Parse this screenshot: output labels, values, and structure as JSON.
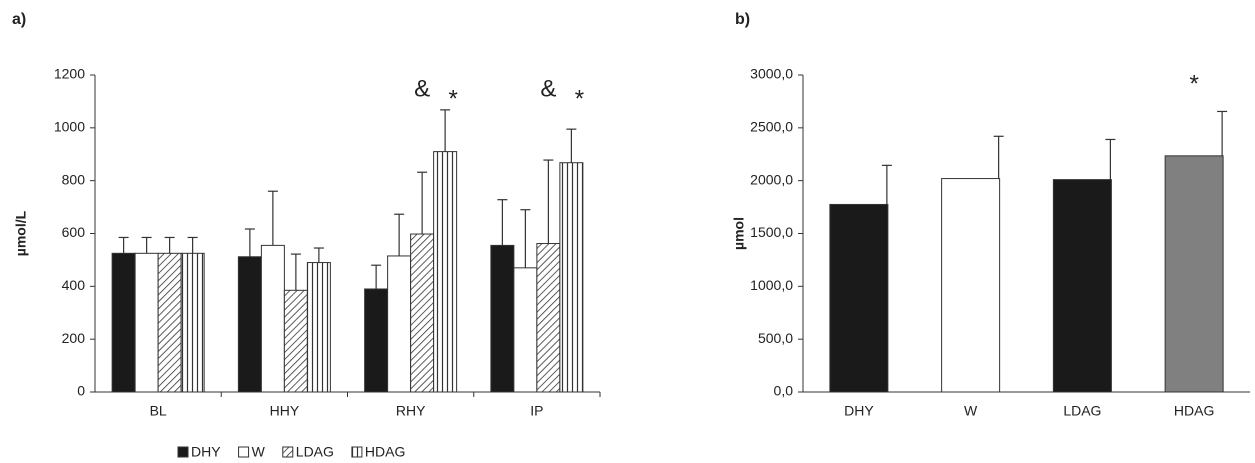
{
  "chart_data": [
    {
      "type": "bar",
      "panel_label": "a)",
      "ylabel": "µmol/L",
      "categories": [
        "BL",
        "HHY",
        "RHY",
        "IP"
      ],
      "series": [
        {
          "name": "DHY",
          "color": "#1a1a1a",
          "pattern": "solid",
          "values": [
            525,
            512,
            390,
            555
          ],
          "errors": [
            60,
            105,
            90,
            173
          ]
        },
        {
          "name": "W",
          "color": "#ffffff",
          "pattern": "solid",
          "values": [
            525,
            555,
            515,
            470
          ],
          "errors": [
            60,
            205,
            158,
            220
          ]
        },
        {
          "name": "LDAG",
          "color": "#333333",
          "pattern": "diagonal",
          "values": [
            525,
            385,
            598,
            562
          ],
          "errors": [
            60,
            137,
            234,
            316
          ]
        },
        {
          "name": "HDAG",
          "color": "#333333",
          "pattern": "vertical",
          "values": [
            525,
            490,
            910,
            868
          ],
          "errors": [
            60,
            55,
            158,
            127
          ]
        }
      ],
      "annotations": [
        {
          "text": "&",
          "category": "RHY",
          "series": "LDAG"
        },
        {
          "text": "*",
          "category": "RHY",
          "series": "HDAG"
        },
        {
          "text": "&",
          "category": "IP",
          "series": "LDAG"
        },
        {
          "text": "*",
          "category": "IP",
          "series": "HDAG"
        }
      ],
      "ylim": [
        0,
        1200
      ],
      "yticks": [
        0,
        200,
        400,
        600,
        800,
        1000,
        1200
      ],
      "grid": false,
      "legend": "bottom"
    },
    {
      "type": "bar",
      "panel_label": "b)",
      "ylabel": "µmol",
      "categories": [
        "DHY",
        "W",
        "LDAG",
        "HDAG"
      ],
      "values": [
        1775,
        2020,
        2010,
        2235
      ],
      "errors": [
        370,
        400,
        380,
        420
      ],
      "colors": [
        "#1a1a1a",
        "#ffffff",
        "#1a1a1a",
        "#808080"
      ],
      "annotations": [
        {
          "text": "*",
          "category": "HDAG"
        }
      ],
      "ylim": [
        0,
        3000
      ],
      "yticks": [
        {
          "value": 0,
          "label": "0,0"
        },
        {
          "value": 500,
          "label": "500,0"
        },
        {
          "value": 1000,
          "label": "1000,0"
        },
        {
          "value": 1500,
          "label": "1500,0"
        },
        {
          "value": 2000,
          "label": "2000,0"
        },
        {
          "value": 2500,
          "label": "2500,0"
        },
        {
          "value": 3000,
          "label": "3000,0"
        }
      ],
      "grid": false
    }
  ]
}
